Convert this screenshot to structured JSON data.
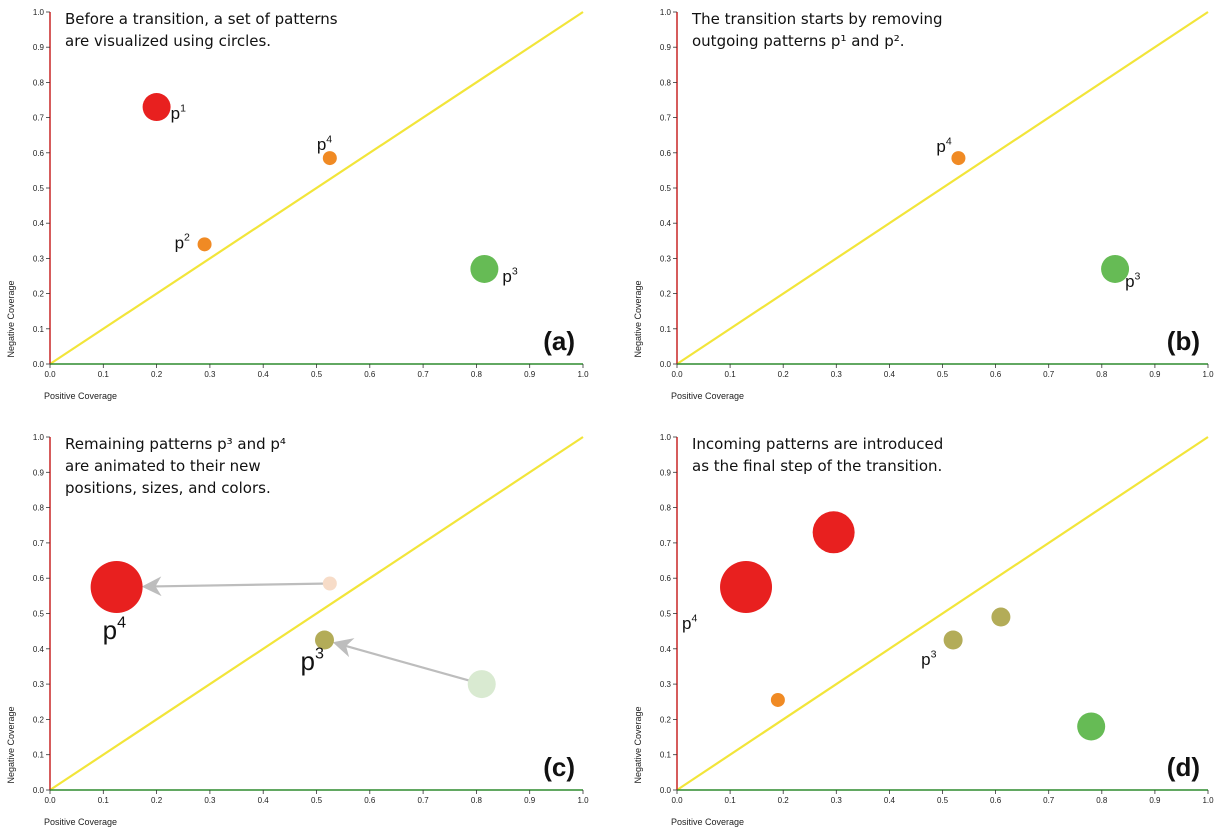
{
  "chart_data": [
    {
      "type": "scatter",
      "panel_label": "(a)",
      "caption": [
        "Before a transition, a set of patterns",
        "are visualized using circles."
      ],
      "xlabel": "Positive Coverage",
      "ylabel": "Negative Coverage",
      "xlim": [
        0,
        1
      ],
      "ylim": [
        0,
        1
      ],
      "ticks": [
        "0.0",
        "0.1",
        "0.2",
        "0.3",
        "0.4",
        "0.5",
        "0.6",
        "0.7",
        "0.8",
        "0.9",
        "1.0"
      ],
      "diagonal": true,
      "points": [
        {
          "label": "p",
          "sup": "1",
          "x": 0.2,
          "y": 0.73,
          "size": "large",
          "color": "#e8201f"
        },
        {
          "label": "p",
          "sup": "4",
          "x": 0.525,
          "y": 0.585,
          "size": "small",
          "color": "#f08a24"
        },
        {
          "label": "p",
          "sup": "2",
          "x": 0.29,
          "y": 0.34,
          "size": "small",
          "color": "#f08a24"
        },
        {
          "label": "p",
          "sup": "3",
          "x": 0.815,
          "y": 0.27,
          "size": "medium",
          "color": "#66bb55"
        }
      ]
    },
    {
      "type": "scatter",
      "panel_label": "(b)",
      "caption": [
        "The transition starts by removing",
        "outgoing patterns p¹ and p²."
      ],
      "xlabel": "Positive Coverage",
      "ylabel": "Negative Coverage",
      "xlim": [
        0,
        1
      ],
      "ylim": [
        0,
        1
      ],
      "ticks": [
        "0.0",
        "0.1",
        "0.2",
        "0.3",
        "0.4",
        "0.5",
        "0.6",
        "0.7",
        "0.8",
        "0.9",
        "1.0"
      ],
      "diagonal": true,
      "points": [
        {
          "label": "p",
          "sup": "4",
          "x": 0.53,
          "y": 0.585,
          "size": "small",
          "color": "#f08a24"
        },
        {
          "label": "p",
          "sup": "3",
          "x": 0.825,
          "y": 0.27,
          "size": "medium",
          "color": "#66bb55"
        }
      ]
    },
    {
      "type": "scatter",
      "panel_label": "(c)",
      "caption": [
        "Remaining patterns p³ and p⁴",
        "are animated to their new",
        "positions, sizes, and colors."
      ],
      "xlabel": "Positive Coverage",
      "ylabel": "Negative Coverage",
      "xlim": [
        0,
        1
      ],
      "ylim": [
        0,
        1
      ],
      "ticks": [
        "0.0",
        "0.1",
        "0.2",
        "0.3",
        "0.4",
        "0.5",
        "0.6",
        "0.7",
        "0.8",
        "0.9",
        "1.0"
      ],
      "diagonal": true,
      "points": [
        {
          "label": "",
          "sup": "",
          "x": 0.525,
          "y": 0.585,
          "size": "small",
          "color": "#f7dcc8"
        },
        {
          "label": "",
          "sup": "",
          "x": 0.81,
          "y": 0.3,
          "size": "medium",
          "color": "#d9ead1"
        },
        {
          "label": "p",
          "sup": "4",
          "x": 0.125,
          "y": 0.575,
          "size": "xlarge",
          "color": "#e8201f"
        },
        {
          "label": "p",
          "sup": "3",
          "x": 0.515,
          "y": 0.425,
          "size": "small-medium",
          "color": "#b3ac58"
        }
      ],
      "arrows": [
        {
          "from": [
            0.525,
            0.585
          ],
          "to": [
            0.125,
            0.575
          ]
        },
        {
          "from": [
            0.81,
            0.3
          ],
          "to": [
            0.515,
            0.425
          ]
        }
      ]
    },
    {
      "type": "scatter",
      "panel_label": "(d)",
      "caption": [
        "Incoming patterns are introduced",
        "as the final step of the transition."
      ],
      "xlabel": "Positive Coverage",
      "ylabel": "Negative Coverage",
      "xlim": [
        0,
        1
      ],
      "ylim": [
        0,
        1
      ],
      "ticks": [
        "0.0",
        "0.1",
        "0.2",
        "0.3",
        "0.4",
        "0.5",
        "0.6",
        "0.7",
        "0.8",
        "0.9",
        "1.0"
      ],
      "diagonal": true,
      "points": [
        {
          "label": "",
          "sup": "",
          "x": 0.295,
          "y": 0.73,
          "size": "large-plus",
          "color": "#e8201f"
        },
        {
          "label": "p",
          "sup": "4",
          "x": 0.13,
          "y": 0.575,
          "size": "xlarge",
          "color": "#e8201f"
        },
        {
          "label": "",
          "sup": "",
          "x": 0.61,
          "y": 0.49,
          "size": "small-medium",
          "color": "#b3ac58"
        },
        {
          "label": "p",
          "sup": "3",
          "x": 0.52,
          "y": 0.425,
          "size": "small-medium",
          "color": "#b3ac58"
        },
        {
          "label": "",
          "sup": "",
          "x": 0.19,
          "y": 0.255,
          "size": "small",
          "color": "#f08a24"
        },
        {
          "label": "",
          "sup": "",
          "x": 0.78,
          "y": 0.18,
          "size": "medium",
          "color": "#66bb55"
        }
      ]
    }
  ],
  "colors": {
    "y_axis": "#cc3333",
    "x_axis": "#2e8b2e",
    "diagonal": "#f2e53a",
    "arrow": "#bdbdbd"
  }
}
